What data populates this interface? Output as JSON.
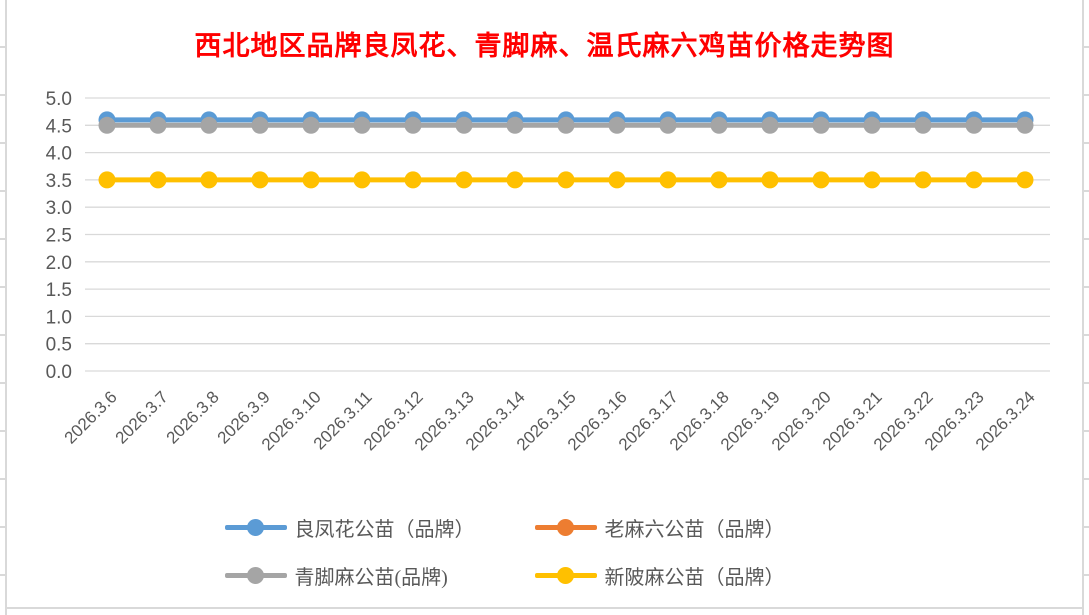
{
  "frame": {
    "border_color": "#d9d9d9",
    "background_color": "#ffffff"
  },
  "chart_data": {
    "type": "line",
    "title": "西北地区品牌良凤花、青脚麻、温氏麻六鸡苗价格走势图",
    "title_color": "#ff0000",
    "xlabel": "",
    "ylabel": "",
    "categories": [
      "2026.3.6",
      "2026.3.7",
      "2026.3.8",
      "2026.3.9",
      "2026.3.10",
      "2026.3.11",
      "2026.3.12",
      "2026.3.13",
      "2026.3.14",
      "2026.3.15",
      "2026.3.16",
      "2026.3.17",
      "2026.3.18",
      "2026.3.19",
      "2026.3.20",
      "2026.3.21",
      "2026.3.22",
      "2026.3.23",
      "2026.3.24"
    ],
    "series": [
      {
        "name": "良凤花公苗（品牌）",
        "color": "#5b9bd5",
        "values": [
          4.6,
          4.6,
          4.6,
          4.6,
          4.6,
          4.6,
          4.6,
          4.6,
          4.6,
          4.6,
          4.6,
          4.6,
          4.6,
          4.6,
          4.6,
          4.6,
          4.6,
          4.6,
          4.6
        ]
      },
      {
        "name": "老麻六公苗（品牌）",
        "color": "#ed7d31",
        "values": [],
        "note": "series listed in legend but not visible in plot area (fully overlapped by another series)"
      },
      {
        "name": "青脚麻公苗(品牌)",
        "color": "#a5a5a5",
        "values": [
          4.5,
          4.5,
          4.5,
          4.5,
          4.5,
          4.5,
          4.5,
          4.5,
          4.5,
          4.5,
          4.5,
          4.5,
          4.5,
          4.5,
          4.5,
          4.5,
          4.5,
          4.5,
          4.5
        ]
      },
      {
        "name": "新陂麻公苗（品牌）",
        "color": "#ffc000",
        "values": [
          3.5,
          3.5,
          3.5,
          3.5,
          3.5,
          3.5,
          3.5,
          3.5,
          3.5,
          3.5,
          3.5,
          3.5,
          3.5,
          3.5,
          3.5,
          3.5,
          3.5,
          3.5,
          3.5
        ]
      }
    ],
    "ylim": [
      0.0,
      5.0
    ],
    "ytick_step": 0.5,
    "ytick_labels": [
      "0.0",
      "0.5",
      "1.0",
      "1.5",
      "2.0",
      "2.5",
      "3.0",
      "3.5",
      "4.0",
      "4.5",
      "5.0"
    ],
    "grid": true,
    "gridline_color": "#d9d9d9",
    "axis_label_color": "#595959",
    "legend_position": "bottom"
  }
}
